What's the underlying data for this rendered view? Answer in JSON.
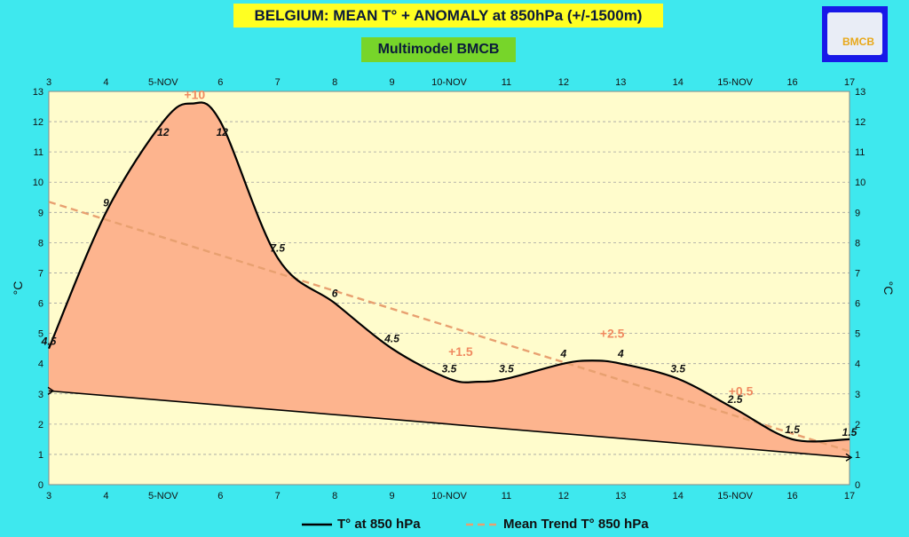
{
  "header": {
    "title": "BELGIUM:  MEAN T° + ANOMALY at 850hPa (+/-1500m)",
    "subtitle": "Multimodel BMCB",
    "logo_text": "BMCB"
  },
  "legend": {
    "series1": "T° at 850 hPa",
    "series2": "Mean Trend T° 850 hPa"
  },
  "colors": {
    "background": "#3ee8ee",
    "plot_area": "#fffccc",
    "anomaly_fill": "#fdb48e",
    "temperature_line": "#000000",
    "trend_line": "#e8a070",
    "anomaly_label": "#f08a60"
  },
  "chart_data": {
    "type": "area",
    "title": "BELGIUM:  MEAN T° + ANOMALY at 850hPa (+/-1500m)",
    "subtitle": "Multimodel BMCB",
    "ylabel_left": "°C",
    "ylabel_right": "°C",
    "xlabel": "",
    "x_tick_labels": [
      "3",
      "4",
      "5-NOV",
      "6",
      "7",
      "8",
      "9",
      "10-NOV",
      "11",
      "12",
      "13",
      "14",
      "15-NOV",
      "16",
      "17"
    ],
    "x_range": [
      3,
      17
    ],
    "ylim": [
      0,
      13
    ],
    "y_ticks": [
      0,
      1,
      2,
      3,
      4,
      5,
      6,
      7,
      8,
      9,
      10,
      11,
      12,
      13
    ],
    "grid": true,
    "legend_position": "bottom",
    "series": [
      {
        "name": "T° at 850 hPa",
        "style": "solid",
        "points": [
          {
            "x": 3,
            "y": 4.5,
            "label": "4.5"
          },
          {
            "x": 4,
            "y": 9,
            "label": "9"
          },
          {
            "x": 5,
            "y": 12,
            "label": "12"
          },
          {
            "x": 5.5,
            "y": 12.6,
            "label": ""
          },
          {
            "x": 6,
            "y": 12,
            "label": "12"
          },
          {
            "x": 7,
            "y": 7.5,
            "label": "7.5"
          },
          {
            "x": 8,
            "y": 6,
            "label": "6"
          },
          {
            "x": 9,
            "y": 4.5,
            "label": "4.5"
          },
          {
            "x": 10,
            "y": 3.5,
            "label": "3.5"
          },
          {
            "x": 10.5,
            "y": 3.4,
            "label": ""
          },
          {
            "x": 11,
            "y": 3.5,
            "label": "3.5"
          },
          {
            "x": 12,
            "y": 4,
            "label": "4"
          },
          {
            "x": 12.5,
            "y": 4.1,
            "label": ""
          },
          {
            "x": 13,
            "y": 4,
            "label": "4"
          },
          {
            "x": 14,
            "y": 3.5,
            "label": "3.5"
          },
          {
            "x": 15,
            "y": 2.5,
            "label": "2.5"
          },
          {
            "x": 16,
            "y": 1.5,
            "label": "1.5"
          },
          {
            "x": 17,
            "y": 1.5,
            "label": "1.5"
          }
        ]
      },
      {
        "name": "Mean Trend T° 850 hPa",
        "style": "dashed",
        "points": [
          {
            "x": 3,
            "y": 9.35
          },
          {
            "x": 17,
            "y": 1.1
          }
        ]
      }
    ],
    "normal_baseline": [
      {
        "x": 3,
        "y": 3.1
      },
      {
        "x": 17,
        "y": 0.9
      }
    ],
    "anomaly_labels": [
      {
        "x": 5.55,
        "y": 12.9,
        "text": "+10"
      },
      {
        "x": 10.2,
        "y": 4.4,
        "text": "+1.5"
      },
      {
        "x": 12.85,
        "y": 5.0,
        "text": "+2.5"
      },
      {
        "x": 15.1,
        "y": 3.1,
        "text": "+0.5"
      }
    ]
  }
}
